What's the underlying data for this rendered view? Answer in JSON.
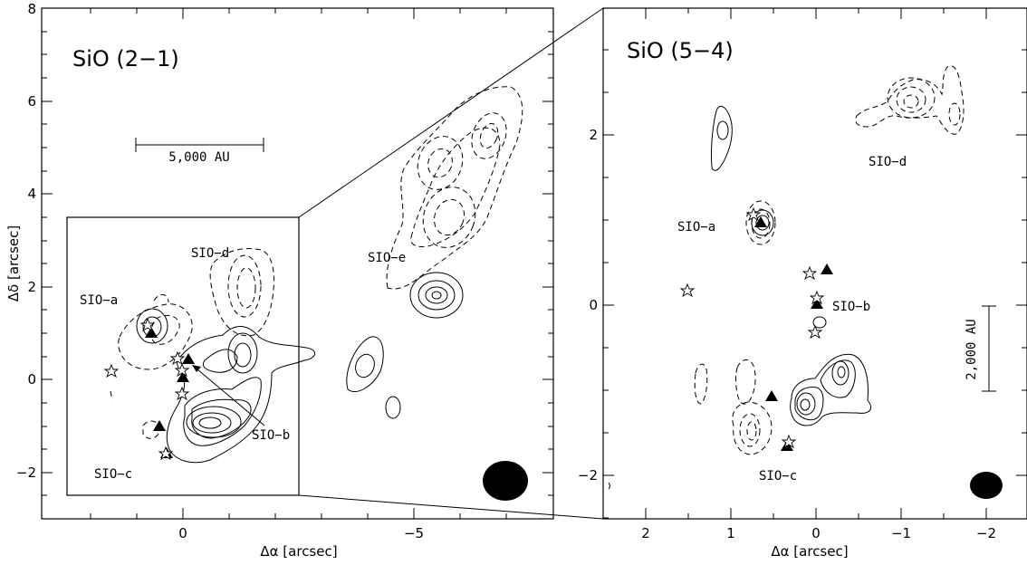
{
  "panels": {
    "left": {
      "title": "SiO (2−1)",
      "xlabel": "Δα [arcsec]",
      "ylabel": "Δδ [arcsec]",
      "xticks": [
        "0",
        "−5"
      ],
      "yticks": [
        "−2",
        "0",
        "2",
        "4",
        "6",
        "8"
      ],
      "scalebar": "5,000 AU",
      "regions": [
        "SIO−a",
        "SIO−b",
        "SIO−c",
        "SIO−d",
        "SIO−e"
      ]
    },
    "right": {
      "title": "SiO (5−4)",
      "xlabel": "Δα [arcsec]",
      "xticks": [
        "2",
        "1",
        "0",
        "−1",
        "−2"
      ],
      "yticks": [
        "−2",
        "0",
        "2"
      ],
      "scalebar": "2,000 AU",
      "regions": [
        "SIO−a",
        "SIO−b",
        "SIO−c",
        "SIO−d"
      ]
    }
  }
}
